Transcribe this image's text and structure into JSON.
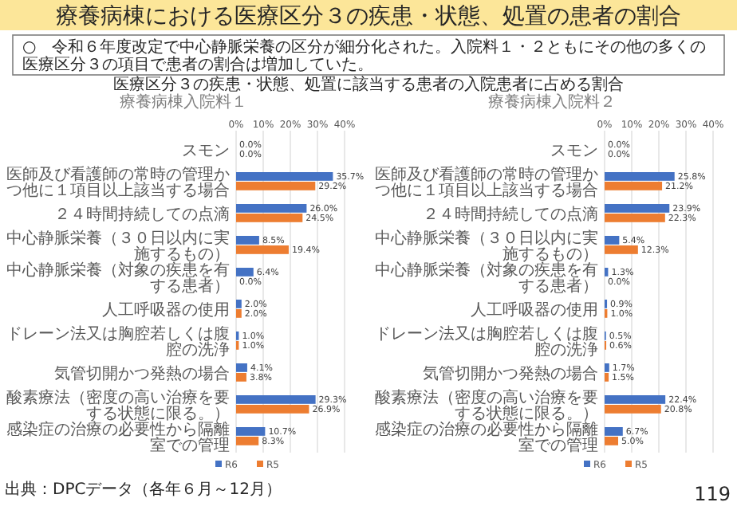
{
  "chart_data": [
    {
      "type": "bar",
      "orientation": "horizontal",
      "title": "療養病棟入院料１",
      "categories": [
        "スモン",
        "医師及び看護師の常時の管理かつ他に１項目以上該当する場合",
        "２４時間持続しての点滴",
        "中心静脈栄養（３０日以内に実施するもの）",
        "中心静脈栄養（対象の疾患を有する患者）",
        "人工呼吸器の使用",
        "ドレーン法又は胸腔若しくは腹腔の洗浄",
        "気管切開かつ発熱の場合",
        "酸素療法（密度の高い治療を要する状態に限る。）",
        "感染症の治療の必要性から隔離室での管理"
      ],
      "series": [
        {
          "name": "R6",
          "color": "#4472c4",
          "values": [
            0.0,
            35.7,
            26.0,
            8.5,
            6.4,
            2.0,
            1.0,
            4.1,
            29.3,
            10.7
          ],
          "value_labels": [
            "0.0%",
            "35.7%",
            "26.0%",
            "8.5%",
            "6.4%",
            "2.0%",
            "1.0%",
            "4.1%",
            "29.3%",
            "10.7%"
          ]
        },
        {
          "name": "R5",
          "color": "#ed7d31",
          "values": [
            0.0,
            29.2,
            24.5,
            19.4,
            0.0,
            2.0,
            1.0,
            3.8,
            26.9,
            8.3
          ],
          "value_labels": [
            "0.0%",
            "29.2%",
            "24.5%",
            "19.4%",
            "0.0%",
            "2.0%",
            "1.0%",
            "3.8%",
            "26.9%",
            "8.3%"
          ]
        }
      ],
      "xlim": [
        0,
        40
      ],
      "xticks": [
        {
          "value": 0,
          "label": "0%"
        },
        {
          "value": 10,
          "label": "10%"
        },
        {
          "value": 20,
          "label": "20%"
        },
        {
          "value": 30,
          "label": "30%"
        },
        {
          "value": 40,
          "label": "40%"
        }
      ],
      "grid": "x",
      "legend": "bottom",
      "annotations": [
        "療養病棟における医療区分３の疾患・状態、処置の患者の割合",
        "○　令和６年度改定で中心静脈栄養の区分が細分化された。入院料１・２ともにその他の多くの医療区分３の項目で患者の割合は増加していた。",
        "医療区分３の疾患・状態、処置に該当する患者の入院患者に占める割合",
        "出典：DPCデータ（各年６月～12月）"
      ]
    },
    {
      "type": "bar",
      "orientation": "horizontal",
      "title": "療養病棟入院料２",
      "categories": [
        "スモン",
        "医師及び看護師の常時の管理かつ他に１項目以上該当する場合",
        "２４時間持続しての点滴",
        "中心静脈栄養（３０日以内に実施するもの）",
        "中心静脈栄養（対象の疾患を有する患者）",
        "人工呼吸器の使用",
        "ドレーン法又は胸腔若しくは腹腔の洗浄",
        "気管切開かつ発熱の場合",
        "酸素療法（密度の高い治療を要する状態に限る。）",
        "感染症の治療の必要性から隔離室での管理"
      ],
      "series": [
        {
          "name": "R6",
          "color": "#4472c4",
          "values": [
            0.0,
            25.8,
            23.9,
            5.4,
            1.3,
            0.9,
            0.5,
            1.7,
            22.4,
            6.7
          ],
          "value_labels": [
            "0.0%",
            "25.8%",
            "23.9%",
            "5.4%",
            "1.3%",
            "0.9%",
            "0.5%",
            "1.7%",
            "22.4%",
            "6.7%"
          ]
        },
        {
          "name": "R5",
          "color": "#ed7d31",
          "values": [
            0.0,
            21.2,
            22.3,
            12.3,
            0.0,
            1.0,
            0.6,
            1.5,
            20.8,
            5.0
          ],
          "value_labels": [
            "0.0%",
            "21.2%",
            "22.3%",
            "12.3%",
            "0.0%",
            "1.0%",
            "0.6%",
            "1.5%",
            "20.8%",
            "5.0%"
          ]
        }
      ],
      "xlim": [
        0,
        40
      ],
      "xticks": [
        {
          "value": 0,
          "label": "0%"
        },
        {
          "value": 10,
          "label": "10%"
        },
        {
          "value": 20,
          "label": "20%"
        },
        {
          "value": 30,
          "label": "30%"
        },
        {
          "value": 40,
          "label": "40%"
        }
      ],
      "grid": "x",
      "legend": "bottom",
      "annotations": [
        "119"
      ]
    }
  ]
}
